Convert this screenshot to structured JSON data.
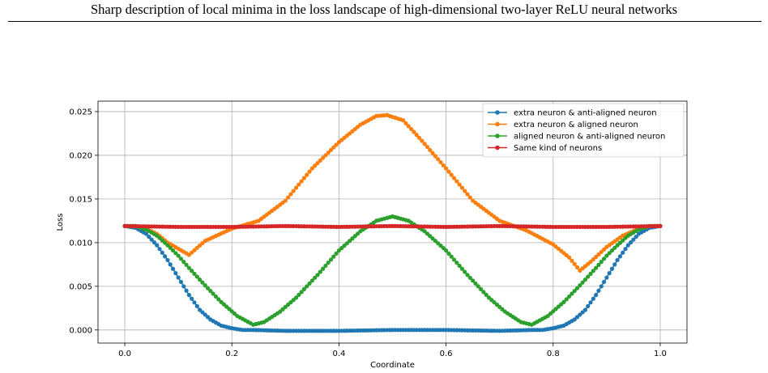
{
  "header": {
    "title": "Sharp description of local minima in the loss landscape of high-dimensional two-layer ReLU neural networks"
  },
  "chart_data": {
    "type": "line",
    "title": "",
    "xlabel": "Coordinate",
    "ylabel": "Loss",
    "xlim": [
      -0.05,
      1.05
    ],
    "ylim": [
      -0.0015,
      0.0262
    ],
    "xticks": [
      0.0,
      0.2,
      0.4,
      0.6,
      0.8,
      1.0
    ],
    "xtick_labels": [
      "0.0",
      "0.2",
      "0.4",
      "0.6",
      "0.8",
      "1.0"
    ],
    "yticks": [
      0.0,
      0.005,
      0.01,
      0.015,
      0.02,
      0.025
    ],
    "ytick_labels": [
      "0.000",
      "0.005",
      "0.010",
      "0.015",
      "0.020",
      "0.025"
    ],
    "grid": true,
    "legend_position": "top-right",
    "markers": "circle",
    "series": [
      {
        "name": "extra neuron & anti-aligned neuron",
        "color": "#1f77b4",
        "x": [
          0.0,
          0.02,
          0.04,
          0.06,
          0.08,
          0.1,
          0.12,
          0.14,
          0.16,
          0.18,
          0.2,
          0.22,
          0.24,
          0.3,
          0.4,
          0.5,
          0.6,
          0.7,
          0.76,
          0.78,
          0.8,
          0.82,
          0.84,
          0.86,
          0.88,
          0.9,
          0.92,
          0.94,
          0.96,
          0.98,
          1.0
        ],
        "y": [
          0.0119,
          0.0117,
          0.011,
          0.0097,
          0.008,
          0.006,
          0.004,
          0.0023,
          0.0012,
          0.0005,
          0.0002,
          0.0,
          0.0,
          -0.0001,
          -0.0001,
          0.0,
          0.0,
          -0.0001,
          0.0,
          0.0,
          0.0002,
          0.0005,
          0.0012,
          0.0023,
          0.004,
          0.006,
          0.008,
          0.0097,
          0.011,
          0.0117,
          0.0119
        ]
      },
      {
        "name": "extra neuron & aligned neuron",
        "color": "#ff7f0e",
        "x": [
          0.0,
          0.02,
          0.04,
          0.06,
          0.08,
          0.1,
          0.12,
          0.15,
          0.2,
          0.25,
          0.3,
          0.35,
          0.4,
          0.44,
          0.47,
          0.49,
          0.52,
          0.55,
          0.6,
          0.65,
          0.7,
          0.75,
          0.8,
          0.83,
          0.85,
          0.87,
          0.9,
          0.93,
          0.96,
          0.98,
          1.0
        ],
        "y": [
          0.0119,
          0.0119,
          0.0116,
          0.011,
          0.01,
          0.0093,
          0.0086,
          0.0102,
          0.0116,
          0.0125,
          0.0148,
          0.0185,
          0.0215,
          0.0235,
          0.0245,
          0.0246,
          0.024,
          0.022,
          0.0185,
          0.0148,
          0.0125,
          0.0114,
          0.0098,
          0.0083,
          0.0068,
          0.0078,
          0.0095,
          0.0108,
          0.0116,
          0.0119,
          0.0119
        ]
      },
      {
        "name": "aligned neuron & anti-aligned neuron",
        "color": "#2ca02c",
        "x": [
          0.0,
          0.02,
          0.04,
          0.06,
          0.08,
          0.1,
          0.12,
          0.15,
          0.18,
          0.21,
          0.24,
          0.26,
          0.29,
          0.32,
          0.36,
          0.4,
          0.44,
          0.47,
          0.5,
          0.53,
          0.56,
          0.6,
          0.64,
          0.68,
          0.71,
          0.74,
          0.76,
          0.79,
          0.82,
          0.85,
          0.88,
          0.9,
          0.92,
          0.94,
          0.96,
          0.98,
          1.0
        ],
        "y": [
          0.0119,
          0.0119,
          0.0115,
          0.0108,
          0.0097,
          0.0085,
          0.0071,
          0.0051,
          0.0032,
          0.0016,
          0.0006,
          0.0009,
          0.0021,
          0.0037,
          0.0063,
          0.0091,
          0.0113,
          0.0125,
          0.013,
          0.0125,
          0.0113,
          0.0091,
          0.0063,
          0.0037,
          0.0021,
          0.0009,
          0.0006,
          0.0016,
          0.0032,
          0.0051,
          0.0071,
          0.0085,
          0.0097,
          0.0108,
          0.0115,
          0.0119,
          0.0119
        ]
      },
      {
        "name": "Same kind of neurons",
        "color": "#d62728",
        "x": [
          0.0,
          0.1,
          0.2,
          0.3,
          0.4,
          0.5,
          0.6,
          0.7,
          0.8,
          0.9,
          1.0
        ],
        "y": [
          0.0119,
          0.0118,
          0.0118,
          0.0119,
          0.0118,
          0.0119,
          0.0118,
          0.0119,
          0.0118,
          0.0118,
          0.0119
        ]
      }
    ]
  }
}
